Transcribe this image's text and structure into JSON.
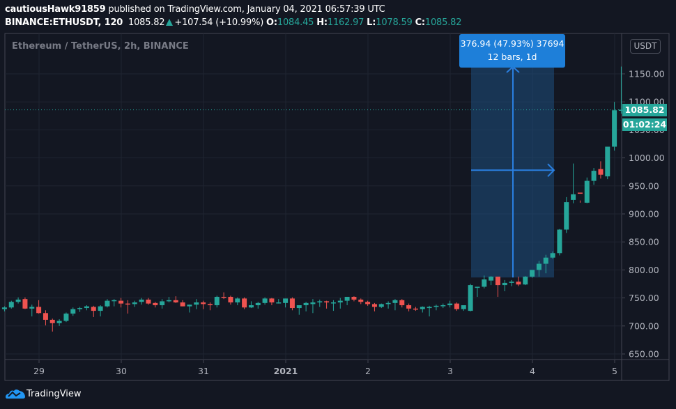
{
  "header": {
    "author": "cautiousHawk91859",
    "published_text": "published on TradingView.com, January 04, 2021 06:57:39 UTC",
    "symbol": "BINANCE:ETHUSDT, 120",
    "last": "1085.82",
    "change": "+107.54 (+10.99%)",
    "o_label": "O:",
    "o": "1084.45",
    "h_label": "H:",
    "h": "1162.97",
    "l_label": "L:",
    "l": "1078.59",
    "c_label": "C:",
    "c": "1085.82"
  },
  "legend": "Ethereum / TetherUS, 2h, BINANCE",
  "currency_button": "USDT",
  "price_tag": "1085.82",
  "countdown": "01:02:24",
  "measure_tool": {
    "line1": "376.94 (47.93%) 37694",
    "line2": "12 bars, 1d"
  },
  "brand": "TradingView",
  "colors": {
    "background": "#131722",
    "up": "#26a69a",
    "down": "#ef5350",
    "grid": "#1f2431",
    "axis_text": "#b2b5be",
    "measure": "#1e7fd9"
  },
  "chart_data": {
    "type": "candlestick",
    "title": "Ethereum / TetherUS, 2h, BINANCE",
    "xlabel": "",
    "ylabel": "USDT",
    "x_ticks": [
      "29",
      "30",
      "31",
      "2021",
      "2",
      "3",
      "4",
      "5"
    ],
    "y_ticks": [
      650,
      700,
      750,
      800,
      850,
      900,
      950,
      1000,
      1050,
      1100,
      1150
    ],
    "ylim": [
      640,
      1190
    ],
    "grid": true,
    "bars_per_day": 12,
    "first_bar_x_day": -0.42,
    "candles": [
      [
        730,
        735,
        726,
        733
      ],
      [
        733,
        745,
        731,
        743
      ],
      [
        743,
        751,
        740,
        747
      ],
      [
        748,
        751,
        730,
        731
      ],
      [
        731,
        738,
        717,
        734
      ],
      [
        734,
        746,
        722,
        723
      ],
      [
        723,
        728,
        701,
        711
      ],
      [
        711,
        713,
        690,
        705
      ],
      [
        705,
        712,
        700,
        709
      ],
      [
        709,
        724,
        707,
        722
      ],
      [
        722,
        733,
        718,
        730
      ],
      [
        730,
        734,
        725,
        732
      ],
      [
        732,
        737,
        728,
        735
      ],
      [
        734,
        736,
        716,
        727
      ],
      [
        727,
        737,
        717,
        735
      ],
      [
        735,
        748,
        733,
        745
      ],
      [
        745,
        748,
        735,
        746
      ],
      [
        745,
        750,
        733,
        740
      ],
      [
        740,
        746,
        722,
        739
      ],
      [
        739,
        745,
        734,
        742
      ],
      [
        743,
        750,
        738,
        747
      ],
      [
        747,
        750,
        738,
        740
      ],
      [
        741,
        743,
        733,
        737
      ],
      [
        737,
        748,
        731,
        744
      ],
      [
        744,
        752,
        742,
        746
      ],
      [
        746,
        753,
        741,
        742
      ],
      [
        742,
        746,
        735,
        735
      ],
      [
        735,
        738,
        724,
        738
      ],
      [
        738,
        748,
        730,
        742
      ],
      [
        742,
        745,
        730,
        739
      ],
      [
        739,
        742,
        728,
        737
      ],
      [
        737,
        754,
        733,
        752
      ],
      [
        752,
        760,
        748,
        751
      ],
      [
        752,
        754,
        738,
        742
      ],
      [
        742,
        751,
        737,
        749
      ],
      [
        749,
        751,
        730,
        733
      ],
      [
        733,
        744,
        732,
        737
      ],
      [
        737,
        743,
        731,
        741
      ],
      [
        741,
        751,
        738,
        749
      ],
      [
        749,
        750,
        737,
        742
      ],
      [
        742,
        748,
        740,
        742
      ],
      [
        741,
        749,
        733,
        749
      ],
      [
        749,
        751,
        728,
        732
      ],
      [
        732,
        736,
        720,
        737
      ],
      [
        737,
        743,
        726,
        741
      ],
      [
        739,
        748,
        723,
        742
      ],
      [
        742,
        747,
        734,
        744
      ],
      [
        744,
        745,
        731,
        742
      ],
      [
        742,
        746,
        727,
        742
      ],
      [
        742,
        750,
        731,
        745
      ],
      [
        745,
        752,
        737,
        752
      ],
      [
        752,
        753,
        744,
        747
      ],
      [
        747,
        749,
        739,
        743
      ],
      [
        743,
        745,
        736,
        739
      ],
      [
        739,
        741,
        726,
        734
      ],
      [
        734,
        740,
        732,
        739
      ],
      [
        739,
        744,
        731,
        741
      ],
      [
        741,
        748,
        728,
        746
      ],
      [
        746,
        748,
        733,
        737
      ],
      [
        737,
        740,
        726,
        731
      ],
      [
        731,
        734,
        727,
        730
      ],
      [
        730,
        735,
        724,
        734
      ],
      [
        732,
        736,
        717,
        734
      ],
      [
        734,
        738,
        728,
        736
      ],
      [
        736,
        740,
        732,
        737
      ],
      [
        737,
        745,
        733,
        740
      ],
      [
        740,
        742,
        727,
        730
      ],
      [
        730,
        736,
        727,
        737
      ],
      [
        727,
        775,
        726,
        773
      ],
      [
        768,
        768,
        752,
        770
      ],
      [
        770,
        790,
        767,
        783
      ],
      [
        781,
        789,
        773,
        788
      ],
      [
        788,
        784,
        752,
        773
      ],
      [
        773,
        782,
        762,
        777
      ],
      [
        777,
        782,
        771,
        779
      ],
      [
        779,
        788,
        771,
        774
      ],
      [
        774,
        789,
        773,
        788
      ],
      [
        788,
        793,
        786,
        800
      ],
      [
        800,
        816,
        788,
        811
      ],
      [
        811,
        827,
        794,
        822
      ],
      [
        822,
        833,
        820,
        830
      ],
      [
        830,
        873,
        826,
        872
      ],
      [
        872,
        930,
        866,
        921
      ],
      [
        925,
        990,
        919,
        935
      ],
      [
        938,
        924,
        920,
        936
      ],
      [
        920,
        965,
        919,
        959
      ],
      [
        959,
        982,
        952,
        977
      ],
      [
        980,
        994,
        963,
        970
      ],
      [
        967,
        1011,
        962,
        1020
      ],
      [
        1020,
        1100,
        1013,
        1085
      ],
      [
        1085,
        1163,
        1079,
        1086
      ]
    ],
    "measure_box": {
      "start_price": 786.5,
      "end_price": 1163.4,
      "bars": 12,
      "change": 376.94,
      "change_pct": 47.93
    }
  }
}
